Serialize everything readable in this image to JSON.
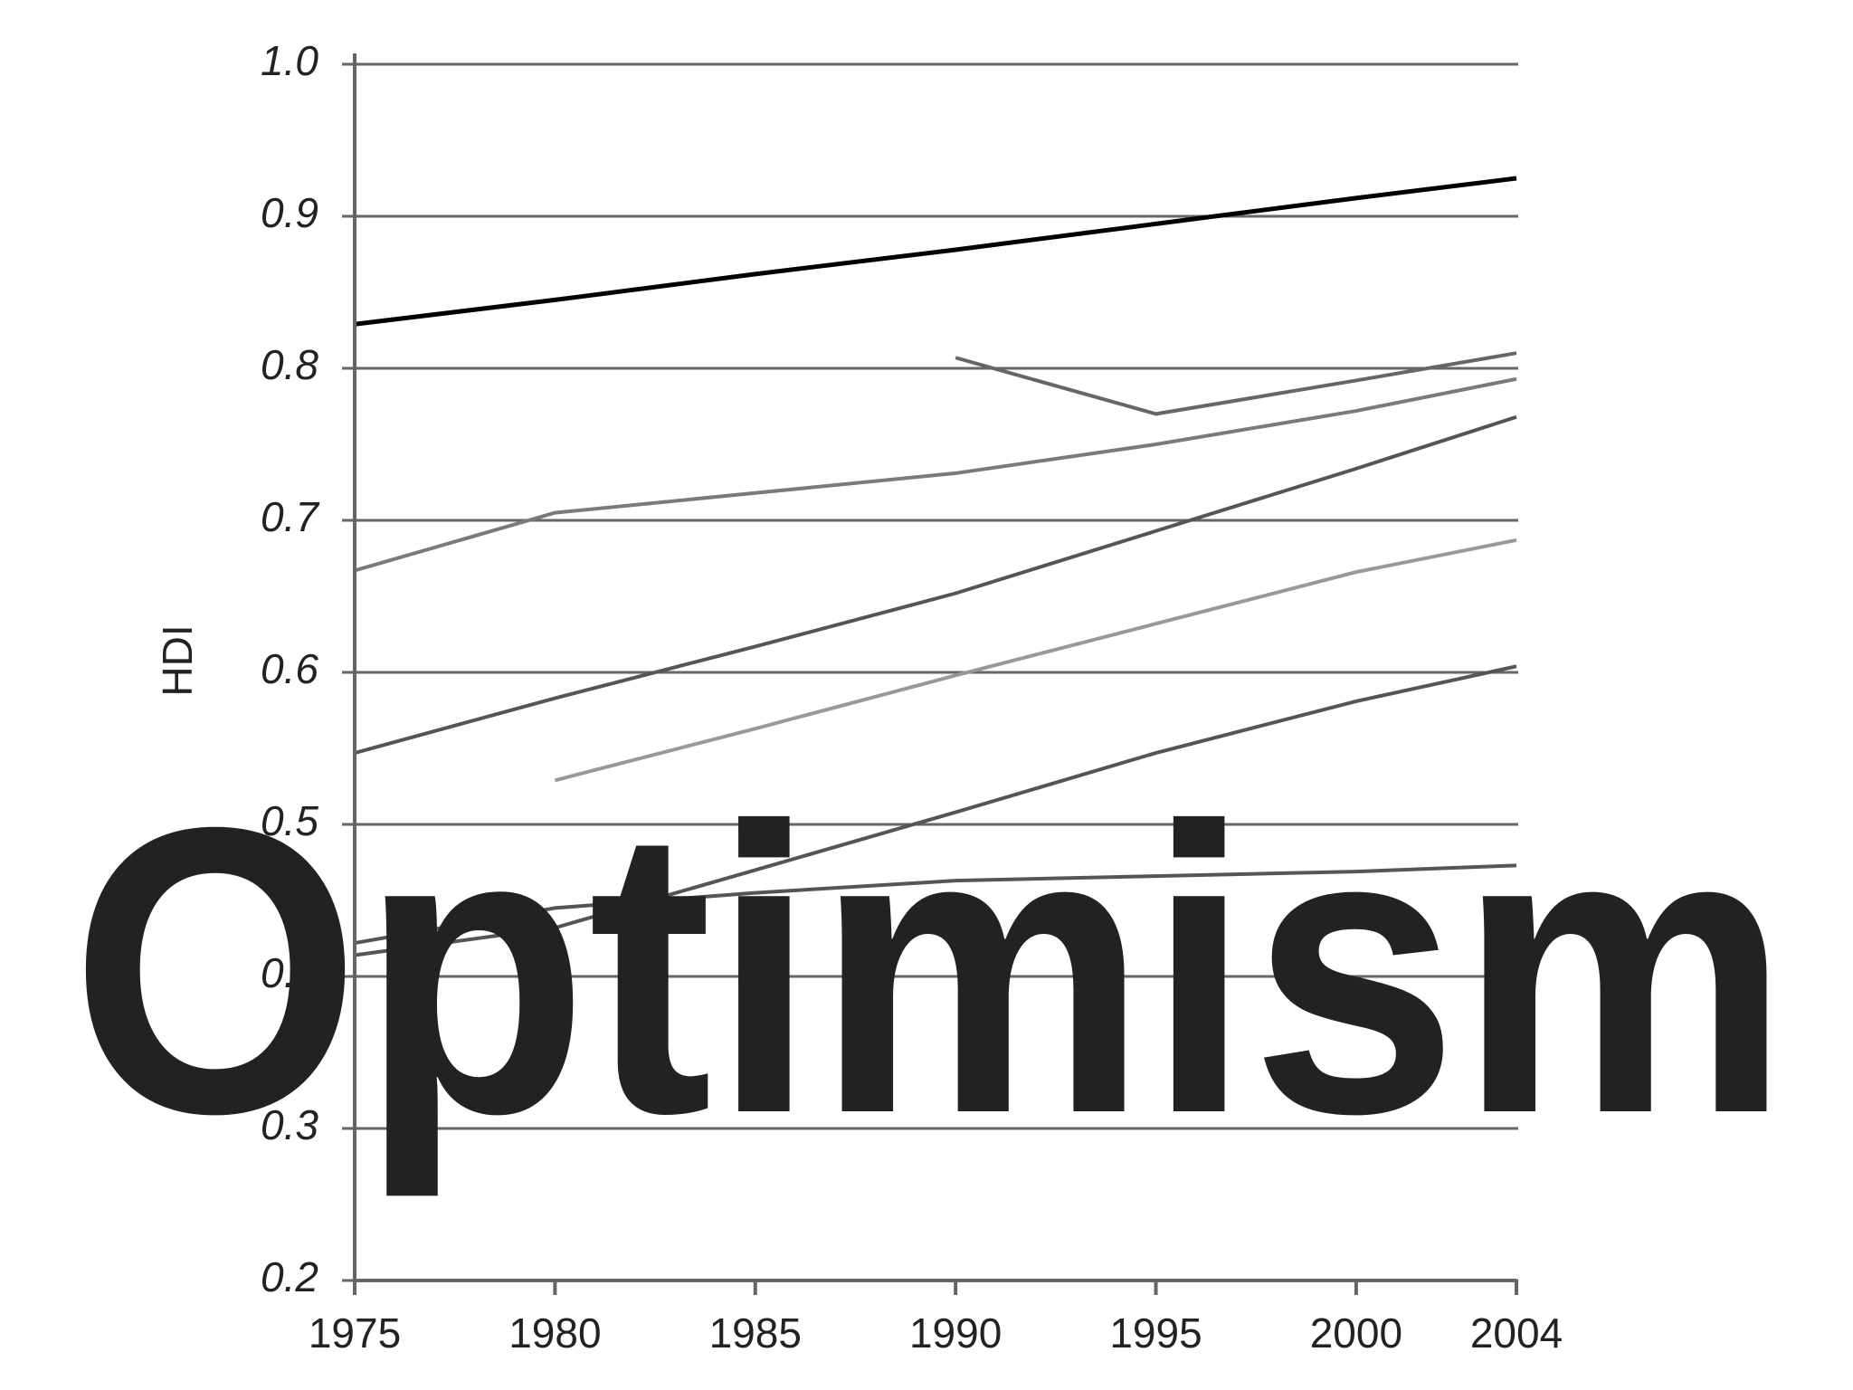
{
  "chart_data": {
    "type": "line",
    "y_label": "HDI",
    "annotation": "Optimism",
    "annotation_color": "#f5964a",
    "x": [
      1975,
      1980,
      1985,
      1990,
      1995,
      2000,
      2004
    ],
    "xlim": [
      1975,
      2004
    ],
    "xticks": [
      1975,
      1980,
      1985,
      1990,
      1995,
      2000,
      2004
    ],
    "ylim": [
      0.2,
      1.0
    ],
    "yticks": [
      0.2,
      0.3,
      0.4,
      0.5,
      0.6,
      0.7,
      0.8,
      0.9,
      {
        "value": 1.0,
        "label": "1.0"
      }
    ],
    "grid": true,
    "series": [
      {
        "color": "#000000",
        "values": [
          0.829,
          0.845,
          0.862,
          0.878,
          0.895,
          0.912,
          0.925
        ]
      },
      {
        "color": "#666666",
        "values": [
          null,
          null,
          null,
          0.807,
          0.77,
          0.792,
          0.81
        ]
      },
      {
        "color": "#7a7a7a",
        "values": [
          0.667,
          0.705,
          0.718,
          0.731,
          0.75,
          0.772,
          0.793
        ]
      },
      {
        "color": "#555555",
        "values": [
          0.547,
          0.583,
          0.617,
          0.652,
          0.693,
          0.734,
          0.768
        ]
      },
      {
        "color": "#999999",
        "values": [
          null,
          0.529,
          0.563,
          0.598,
          0.632,
          0.666,
          0.687
        ]
      },
      {
        "color": "#555555",
        "values": [
          0.414,
          0.432,
          0.47,
          0.508,
          0.547,
          0.581,
          0.604
        ]
      },
      {
        "color": "#555555",
        "values": [
          0.422,
          0.445,
          0.455,
          0.463,
          0.466,
          0.469,
          0.473
        ]
      }
    ]
  }
}
